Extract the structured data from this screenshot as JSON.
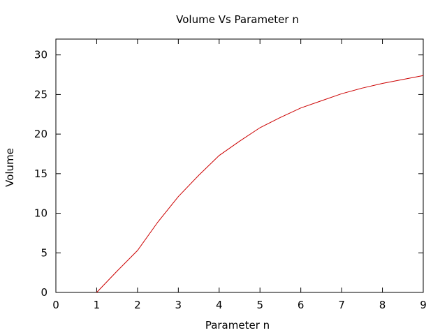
{
  "chart_data": {
    "type": "line",
    "title": "Volume Vs Parameter n",
    "xlabel": "Parameter n",
    "ylabel": "Volume",
    "xlim": [
      0,
      9
    ],
    "ylim": [
      0,
      32
    ],
    "x_ticks": [
      "0",
      "1",
      "2",
      "3",
      "4",
      "5",
      "6",
      "7",
      "8",
      "9"
    ],
    "y_ticks": [
      "0",
      "5",
      "10",
      "15",
      "20",
      "25",
      "30"
    ],
    "grid": false,
    "legend": "none",
    "line_color": "#cc0000",
    "series": [
      {
        "x": [
          1,
          1.5,
          2,
          2.5,
          3,
          3.5,
          4,
          4.5,
          5,
          5.5,
          6,
          6.5,
          7,
          7.5,
          8,
          8.5,
          9
        ],
        "y": [
          0,
          2.7,
          5.3,
          8.9,
          12.1,
          14.8,
          17.3,
          19.1,
          20.8,
          22.1,
          23.3,
          24.2,
          25.1,
          25.8,
          26.4,
          26.9,
          27.4
        ]
      }
    ]
  }
}
